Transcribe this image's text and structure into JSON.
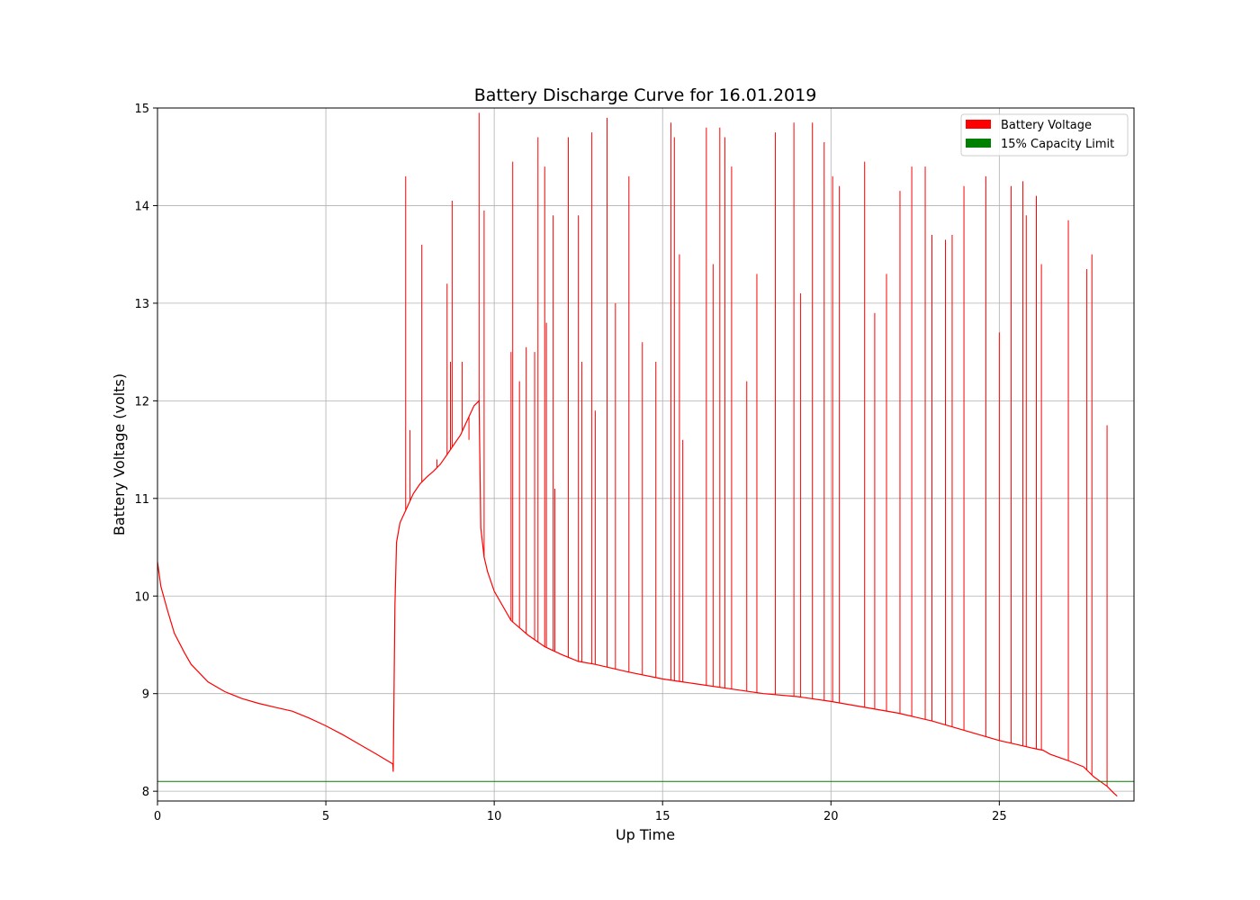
{
  "chart_data": {
    "type": "line",
    "title": "Battery Discharge Curve for 16.01.2019",
    "xlabel": "Up Time",
    "ylabel": "Battery Voltage (volts)",
    "xlim": [
      0,
      29
    ],
    "ylim": [
      7.9,
      15
    ],
    "x_ticks": [
      0,
      5,
      10,
      15,
      20,
      25
    ],
    "y_ticks": [
      8,
      9,
      10,
      11,
      12,
      13,
      14,
      15
    ],
    "grid": true,
    "legend_position": "top-right",
    "colors": {
      "voltage": "#ff0000",
      "limit": "#008000"
    },
    "series": [
      {
        "name": "Battery Voltage",
        "color": "#ff0000",
        "x": [
          0,
          0.1,
          0.3,
          0.5,
          0.8,
          1.0,
          1.5,
          2.0,
          2.5,
          3.0,
          3.5,
          4.0,
          4.5,
          5.0,
          5.5,
          6.0,
          6.5,
          6.99,
          7.0,
          7.05,
          7.1,
          7.2,
          7.4,
          7.6,
          7.8,
          8.0,
          8.2,
          8.4,
          8.6,
          8.8,
          9.0,
          9.2,
          9.4,
          9.55,
          9.6,
          9.7,
          9.8,
          10.0,
          10.5,
          11.0,
          11.5,
          12.0,
          12.5,
          13.0,
          14.0,
          15.0,
          16.0,
          17.0,
          18.0,
          19.0,
          20.0,
          21.0,
          22.0,
          23.0,
          24.0,
          25.0,
          25.5,
          26.0,
          26.3,
          26.5,
          27.0,
          27.5,
          27.8,
          28.0,
          28.2,
          28.4,
          28.5
        ],
        "y": [
          10.35,
          10.1,
          9.85,
          9.62,
          9.42,
          9.3,
          9.12,
          9.02,
          8.95,
          8.9,
          8.86,
          8.82,
          8.75,
          8.67,
          8.58,
          8.48,
          8.38,
          8.28,
          8.2,
          9.9,
          10.55,
          10.75,
          10.9,
          11.05,
          11.15,
          11.22,
          11.28,
          11.35,
          11.45,
          11.55,
          11.65,
          11.8,
          11.95,
          12.0,
          10.7,
          10.4,
          10.25,
          10.05,
          9.75,
          9.6,
          9.48,
          9.4,
          9.33,
          9.3,
          9.22,
          9.15,
          9.1,
          9.05,
          9.0,
          8.97,
          8.92,
          8.86,
          8.8,
          8.72,
          8.62,
          8.52,
          8.48,
          8.44,
          8.42,
          8.38,
          8.32,
          8.25,
          8.15,
          8.1,
          8.05,
          7.98,
          7.95
        ]
      },
      {
        "name": "15% Capacity Limit",
        "color": "#008000",
        "x": [
          0,
          29
        ],
        "y": [
          8.1,
          8.1
        ]
      }
    ],
    "spikes": {
      "color": "#ff0000",
      "x": [
        7.37,
        7.5,
        7.85,
        8.3,
        8.6,
        8.7,
        8.75,
        8.9,
        9.05,
        9.25,
        9.55,
        9.7,
        10.5,
        10.55,
        10.75,
        10.95,
        11.2,
        11.3,
        11.5,
        11.55,
        11.75,
        11.8,
        12.2,
        12.5,
        12.6,
        12.9,
        13.0,
        13.35,
        13.6,
        14.0,
        14.4,
        14.8,
        15.25,
        15.35,
        15.5,
        15.6,
        16.3,
        16.5,
        16.7,
        16.85,
        17.05,
        17.5,
        17.8,
        18.35,
        18.9,
        19.1,
        19.45,
        19.8,
        20.05,
        20.25,
        21.0,
        21.3,
        21.65,
        22.05,
        22.4,
        22.8,
        23.0,
        23.4,
        23.6,
        23.95,
        24.6,
        25.0,
        25.35,
        25.7,
        25.8,
        26.1,
        26.25,
        27.05,
        27.6,
        27.75,
        28.2
      ],
      "y": [
        14.3,
        11.7,
        13.6,
        11.4,
        13.2,
        12.4,
        14.05,
        11.6,
        12.4,
        11.6,
        14.95,
        13.95,
        12.5,
        14.45,
        12.2,
        12.55,
        12.5,
        14.7,
        14.4,
        12.8,
        13.9,
        11.1,
        14.7,
        13.9,
        12.4,
        14.75,
        11.9,
        14.9,
        13.0,
        14.3,
        12.6,
        12.4,
        14.85,
        14.7,
        13.5,
        11.6,
        14.8,
        13.4,
        14.8,
        14.7,
        14.4,
        12.2,
        13.3,
        14.75,
        14.85,
        13.1,
        14.85,
        14.65,
        14.3,
        14.2,
        14.45,
        12.9,
        13.3,
        14.15,
        14.4,
        14.4,
        13.7,
        13.65,
        13.7,
        14.2,
        14.3,
        12.7,
        14.2,
        14.25,
        13.9,
        14.1,
        13.4,
        13.85,
        13.35,
        13.5,
        11.75
      ]
    }
  }
}
